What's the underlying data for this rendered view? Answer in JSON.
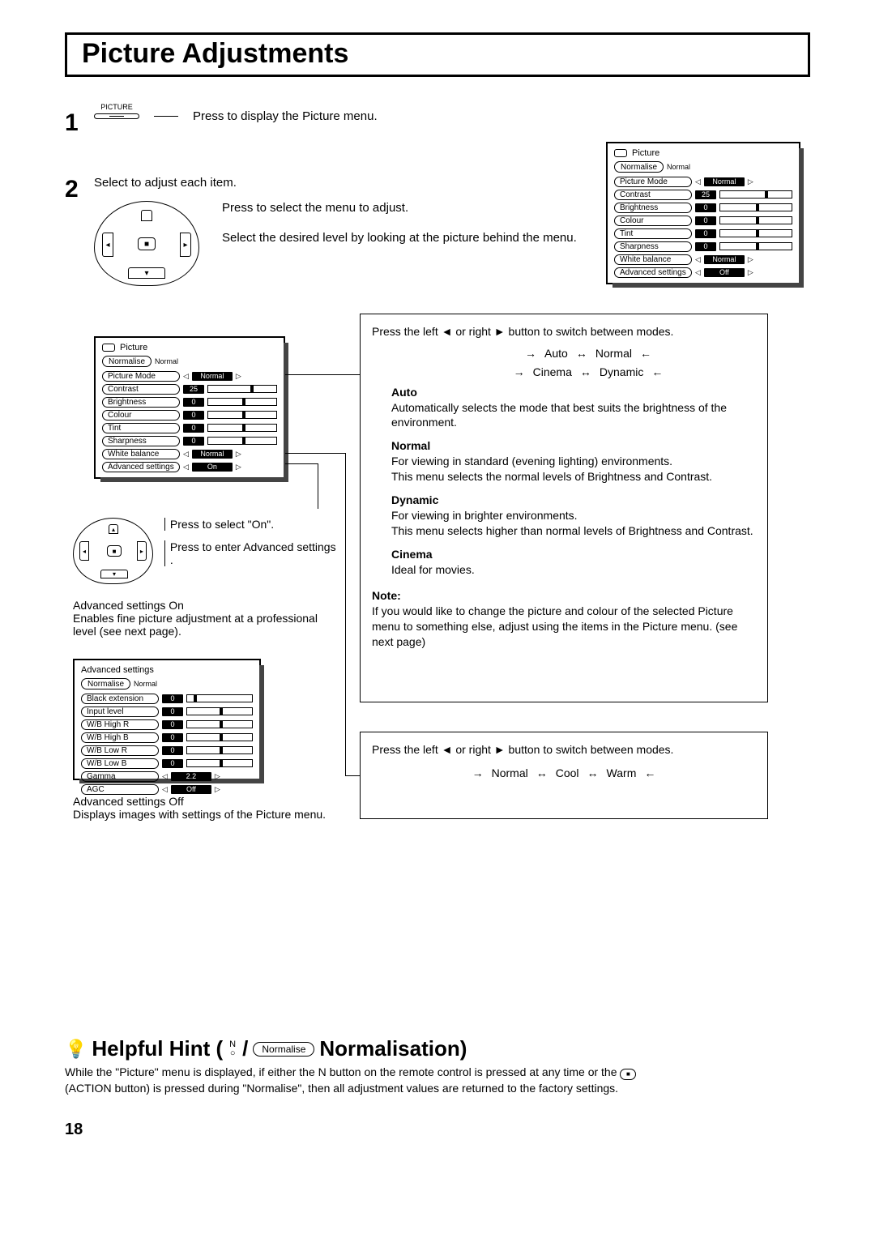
{
  "title": "Picture Adjustments",
  "step1": {
    "btn_top_label": "PICTURE",
    "text": "Press  to display the Picture menu."
  },
  "step2": {
    "top_text": "Select to adjust each item.",
    "text_a": "Press to select the menu to adjust.",
    "text_b": "Select the desired level by looking at the picture behind the menu."
  },
  "osd_picture": {
    "title": "Picture",
    "normalise_btn": "Normalise",
    "normalise_status": "Normal",
    "rows": [
      {
        "label": "Picture Mode",
        "mode": "Normal"
      },
      {
        "label": "Contrast",
        "value": "25",
        "tick_pct": 62
      },
      {
        "label": "Brightness",
        "value": "0",
        "tick_pct": 50
      },
      {
        "label": "Colour",
        "value": "0",
        "tick_pct": 50
      },
      {
        "label": "Tint",
        "value": "0",
        "tick_pct": 50
      },
      {
        "label": "Sharpness",
        "value": "0",
        "tick_pct": 50
      },
      {
        "label": "White balance",
        "mode": "Normal"
      },
      {
        "label": "Advanced  settings",
        "mode": "Off"
      }
    ]
  },
  "osd_picture_left_adv_value": "On",
  "box_mode": {
    "intro": "Press the left ◄ or right ► button to switch between modes.",
    "cycle": [
      "Auto",
      "Normal",
      "Cinema",
      "Dynamic"
    ],
    "auto_h": "Auto",
    "auto_t": "Automatically selects the mode that best suits the brightness of the environment.",
    "normal_h": "Normal",
    "normal_t1": "For viewing in standard (evening lighting) environments.",
    "normal_t2": "This menu selects the normal levels of Brightness and Contrast.",
    "dynamic_h": "Dynamic",
    "dynamic_t1": "For viewing in brighter environments.",
    "dynamic_t2": "This menu selects higher than normal levels of Brightness and Contrast.",
    "cinema_h": "Cinema",
    "cinema_t": "Ideal for movies.",
    "note_h": "Note:",
    "note_t": "If you would like to change the picture and colour of the selected Picture menu to something else, adjust using the items in the Picture menu. (see next page)"
  },
  "box_wb": {
    "intro": "Press the left ◄ or right ► button to switch between modes.",
    "cycle": [
      "Normal",
      "Cool",
      "Warm"
    ]
  },
  "adv_section": {
    "press_on": "Press to select  \"On\".",
    "press_enter": "Press to enter Advanced settings .",
    "adv_on_h": "Advanced settings On",
    "adv_on_t": "Enables fine picture adjustment at a professional level (see next page).",
    "adv_off_h": "Advanced settings Off",
    "adv_off_t": "Displays images with settings of the Picture menu."
  },
  "osd_adv": {
    "title": "Advanced  settings",
    "normalise_btn": "Normalise",
    "normalise_status": "Normal",
    "rows": [
      {
        "label": "Black  extension",
        "value": "0",
        "tick_pct": 10
      },
      {
        "label": "Input  level",
        "value": "0",
        "tick_pct": 50
      },
      {
        "label": "W/B  High  R",
        "value": "0",
        "tick_pct": 50
      },
      {
        "label": "W/B  High  B",
        "value": "0",
        "tick_pct": 50
      },
      {
        "label": "W/B  Low  R",
        "value": "0",
        "tick_pct": 50
      },
      {
        "label": "W/B  Low  B",
        "value": "0",
        "tick_pct": 50
      },
      {
        "label": "Gamma",
        "mode": "2.2"
      },
      {
        "label": "AGC",
        "mode": "Off"
      }
    ]
  },
  "hint": {
    "heading_a": "Helpful Hint (",
    "n_label": "N",
    "normalise_btn": "Normalise",
    "heading_b": " Normalisation)",
    "text_1": "While the \"Picture\" menu is displayed, if either the N button on the remote control is pressed at any time or the ",
    "text_2": "(ACTION button) is pressed during \"Normalise\", then all adjustment values are returned to the factory settings."
  },
  "page_number": "18"
}
